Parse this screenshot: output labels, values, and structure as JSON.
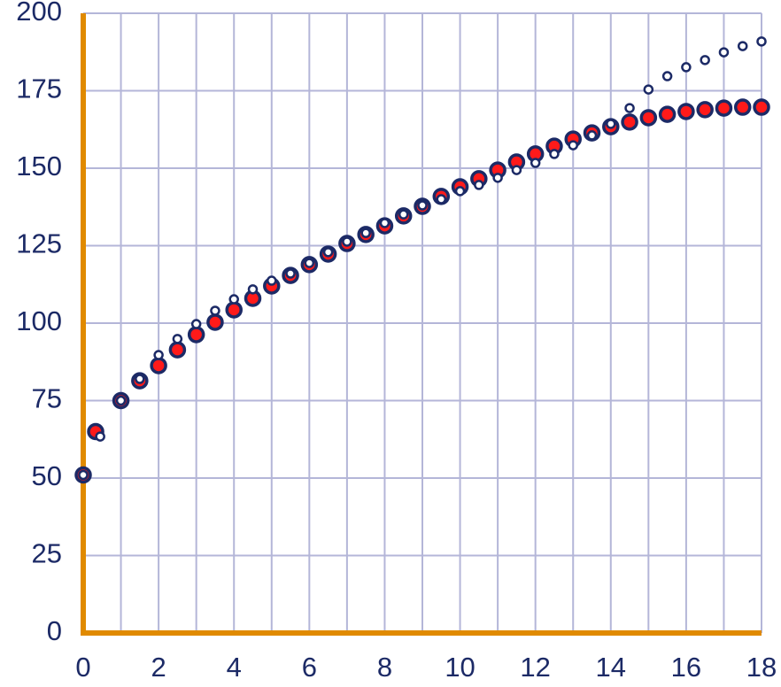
{
  "chart_data": {
    "type": "scatter",
    "xlim": [
      0,
      18
    ],
    "ylim": [
      0,
      200
    ],
    "xticks": [
      0,
      2,
      4,
      6,
      8,
      10,
      12,
      14,
      16,
      18
    ],
    "x_minor_grid": [
      1,
      3,
      5,
      7,
      9,
      11,
      13,
      15,
      17
    ],
    "yticks": [
      0,
      25,
      50,
      75,
      100,
      125,
      150,
      175,
      200
    ],
    "grid": true,
    "grid_color": "#b4b6d8",
    "axis_color": "#e08a00",
    "series": [
      {
        "marker_size": "large",
        "color": "#ff1a1a",
        "edge_color": "#1c2a66",
        "x": [
          0,
          0.33,
          1,
          1.5,
          2,
          2.5,
          3,
          3.5,
          4,
          4.5,
          5,
          5.5,
          6,
          6.5,
          7,
          7.5,
          8,
          8.5,
          9,
          9.5,
          10,
          10.5,
          11,
          11.5,
          12,
          12.5,
          13,
          13.5,
          14,
          14.5,
          15,
          15.5,
          16,
          16.5,
          17,
          17.5,
          18
        ],
        "values": [
          51,
          65,
          75,
          81.4,
          86.3,
          91.4,
          96.3,
          100.3,
          104.3,
          108,
          112,
          115.4,
          118.9,
          122.3,
          125.7,
          128.6,
          131.4,
          134.6,
          137.7,
          140.9,
          144,
          146.6,
          149.4,
          152,
          154.6,
          157.1,
          159.4,
          161.4,
          163.4,
          164.9,
          166.3,
          167.4,
          168.3,
          168.9,
          169.4,
          169.7,
          169.7
        ]
      },
      {
        "marker_size": "small",
        "color": "#ffffff",
        "edge_color": "#1c2a66",
        "x": [
          0,
          0.45,
          1,
          1.5,
          2,
          2.5,
          3,
          3.5,
          4,
          4.5,
          5,
          5.5,
          6,
          6.5,
          7,
          7.5,
          8,
          8.5,
          9,
          9.5,
          10,
          10.5,
          11,
          11.5,
          12,
          12.5,
          13,
          13.5,
          14,
          14.5,
          15,
          15.5,
          16,
          16.5,
          17,
          17.5,
          18
        ],
        "values": [
          51,
          63.4,
          75,
          82,
          89.7,
          94.9,
          99.7,
          104,
          107.7,
          110.9,
          113.7,
          116,
          119.4,
          122.9,
          126.3,
          129.1,
          132.3,
          135.1,
          138,
          140,
          142.6,
          144.6,
          146.9,
          149.4,
          151.7,
          154.6,
          157.4,
          160.6,
          164.3,
          169.4,
          175.4,
          179.7,
          182.6,
          184.9,
          187.4,
          189.4,
          190.9
        ]
      }
    ]
  }
}
